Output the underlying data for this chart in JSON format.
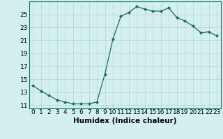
{
  "xlabel": "Humidex (Indice chaleur)",
  "ylabel": "",
  "x": [
    0,
    1,
    2,
    3,
    4,
    5,
    6,
    7,
    8,
    9,
    10,
    11,
    12,
    13,
    14,
    15,
    16,
    17,
    18,
    19,
    20,
    21,
    22,
    23
  ],
  "y": [
    14.0,
    13.2,
    12.5,
    11.8,
    11.5,
    11.2,
    11.2,
    11.2,
    11.5,
    15.8,
    21.2,
    24.7,
    25.3,
    26.2,
    25.8,
    25.5,
    25.5,
    26.0,
    24.5,
    24.0,
    23.2,
    22.2,
    22.3,
    21.7
  ],
  "line_color": "#1a6b5a",
  "marker": "D",
  "marker_size": 2.0,
  "bg_color": "#d4efef",
  "grid_color": "#b8dada",
  "ylim": [
    10.5,
    27.0
  ],
  "yticks": [
    11,
    13,
    15,
    17,
    19,
    21,
    23,
    25
  ],
  "xlim": [
    -0.5,
    23.5
  ],
  "tick_fontsize": 6.5,
  "label_fontsize": 7.5
}
